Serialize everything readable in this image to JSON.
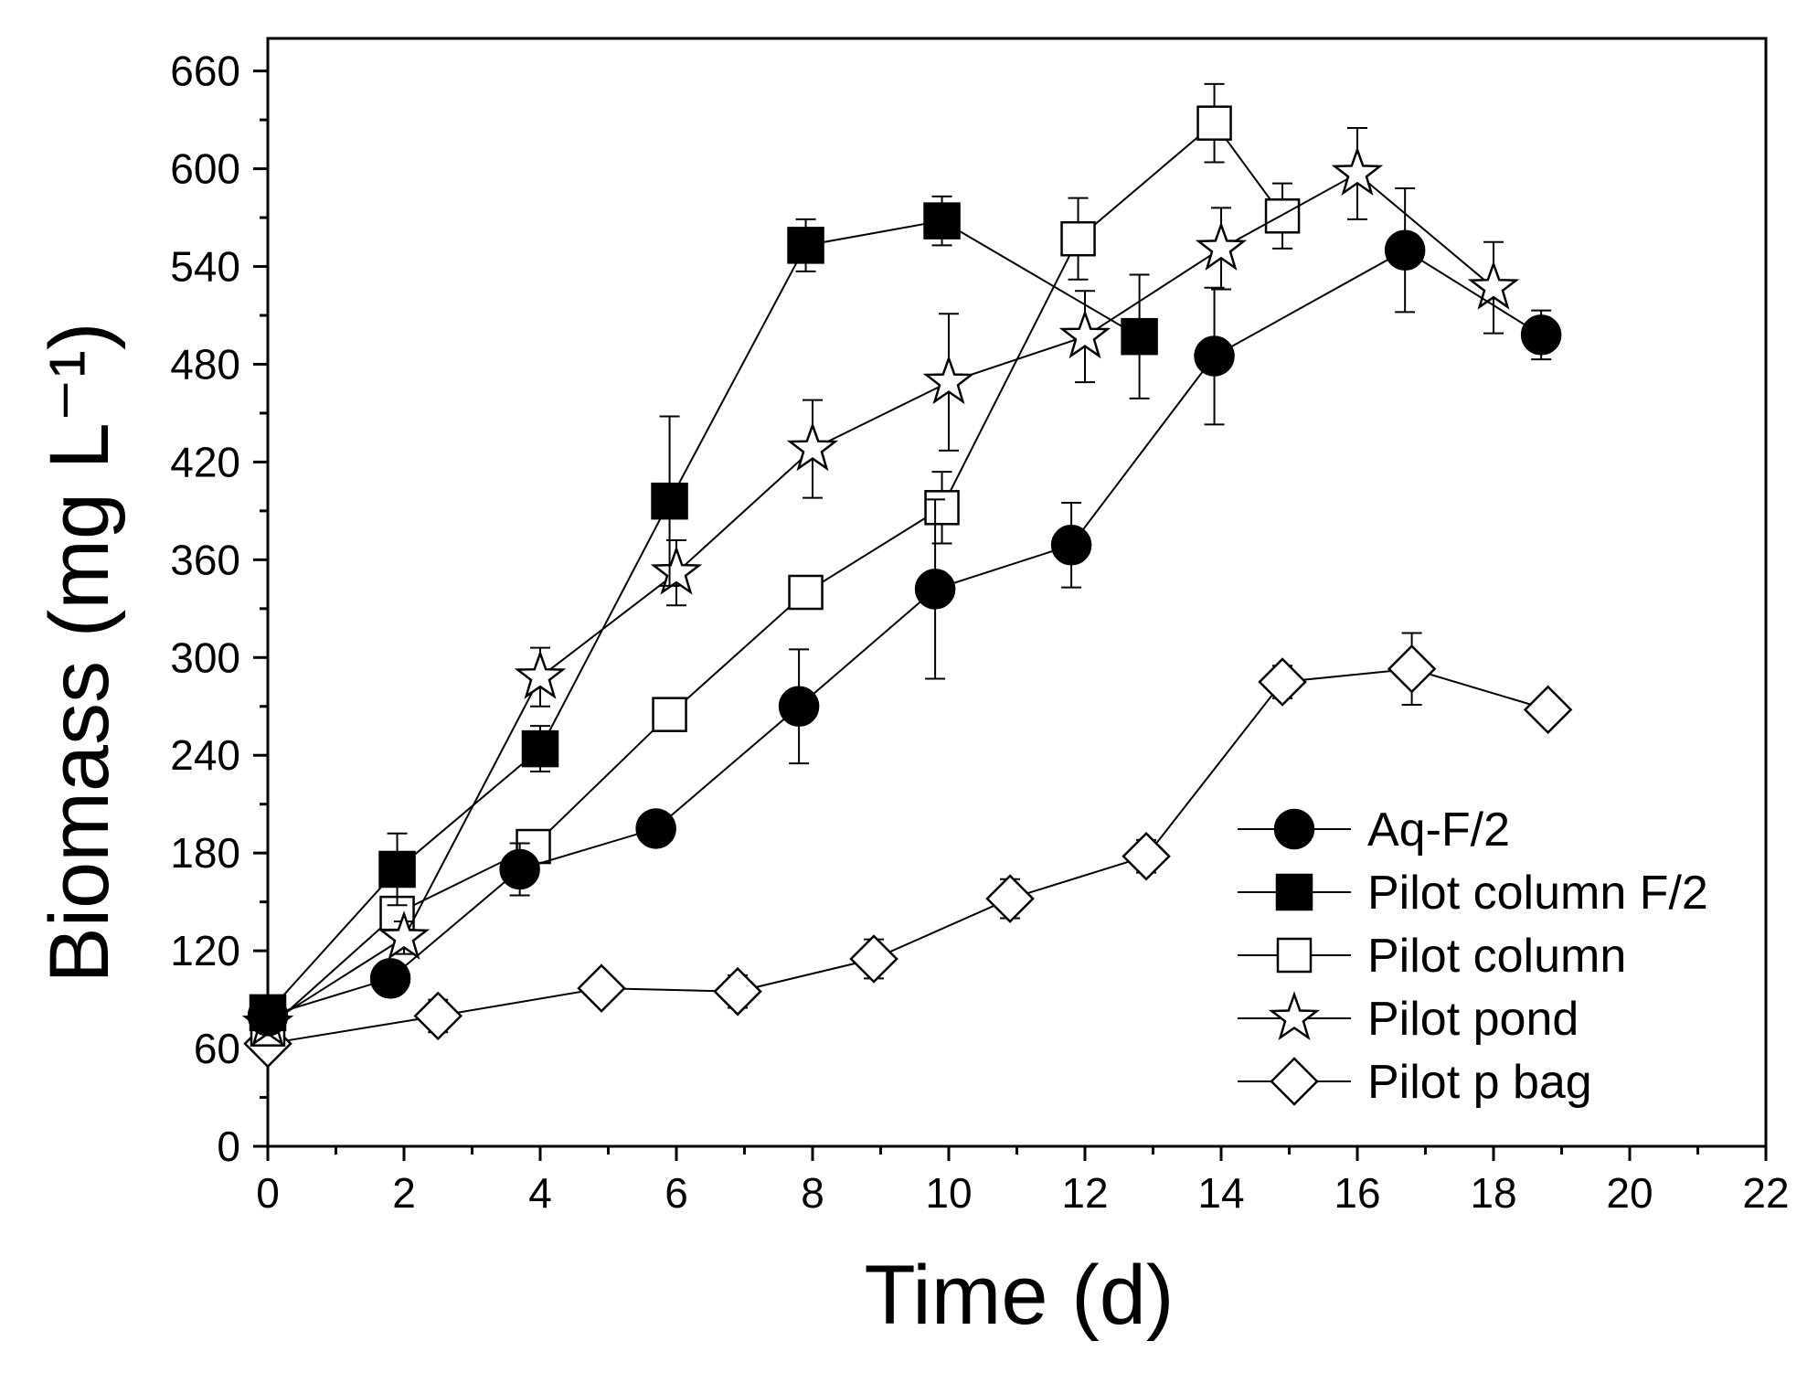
{
  "chart_data": {
    "type": "line",
    "title": "",
    "xlabel": "Time (d)",
    "ylabel": "Biomass (mg L⁻¹)",
    "xlim": [
      0,
      22
    ],
    "ylim": [
      0,
      680
    ],
    "x_ticks": [
      "0",
      "2",
      "4",
      "6",
      "8",
      "10",
      "12",
      "14",
      "16",
      "18",
      "20",
      "22"
    ],
    "y_ticks": [
      "0",
      "60",
      "120",
      "180",
      "240",
      "300",
      "360",
      "420",
      "480",
      "540",
      "600",
      "660"
    ],
    "legend_position": "bottom-right",
    "series": [
      {
        "name": "Aq-F/2",
        "marker": "filled-circle",
        "x": [
          0,
          1.8,
          3.7,
          5.7,
          7.8,
          9.8,
          11.8,
          13.9,
          16.7,
          18.7
        ],
        "y": [
          80,
          103,
          170,
          195,
          270,
          342,
          369,
          485,
          550,
          498
        ],
        "err": [
          8,
          8,
          16,
          6,
          35,
          55,
          26,
          42,
          38,
          15
        ]
      },
      {
        "name": "Pilot column F/2",
        "marker": "filled-square",
        "x": [
          0,
          1.9,
          4.0,
          5.9,
          7.9,
          9.9,
          12.8
        ],
        "y": [
          82,
          170,
          244,
          396,
          553,
          568,
          497
        ],
        "err": [
          8,
          22,
          14,
          52,
          16,
          15,
          38
        ]
      },
      {
        "name": "Pilot column",
        "marker": "open-square",
        "x": [
          0,
          1.9,
          3.9,
          5.9,
          7.9,
          9.9,
          11.9,
          13.9,
          14.9
        ],
        "y": [
          72,
          143,
          184,
          265,
          340,
          392,
          557,
          628,
          571
        ],
        "err": [
          6,
          8,
          10,
          8,
          10,
          22,
          25,
          24,
          20
        ]
      },
      {
        "name": "Pilot pond",
        "marker": "open-star",
        "x": [
          0,
          2.0,
          4.0,
          6.0,
          8.0,
          10.0,
          12.0,
          14.0,
          16.0,
          18.0
        ],
        "y": [
          75,
          128,
          288,
          352,
          428,
          469,
          497,
          551,
          597,
          527
        ],
        "err": [
          6,
          10,
          18,
          20,
          30,
          42,
          28,
          25,
          28,
          28
        ]
      },
      {
        "name": "Pilot p bag",
        "marker": "open-diamond",
        "x": [
          0,
          2.5,
          4.9,
          6.9,
          8.9,
          10.9,
          12.9,
          14.9,
          16.8,
          18.8
        ],
        "y": [
          63,
          80,
          97,
          95,
          115,
          152,
          178,
          285,
          293,
          268
        ],
        "err": [
          5,
          10,
          6,
          10,
          12,
          12,
          10,
          10,
          22,
          8
        ]
      }
    ]
  }
}
